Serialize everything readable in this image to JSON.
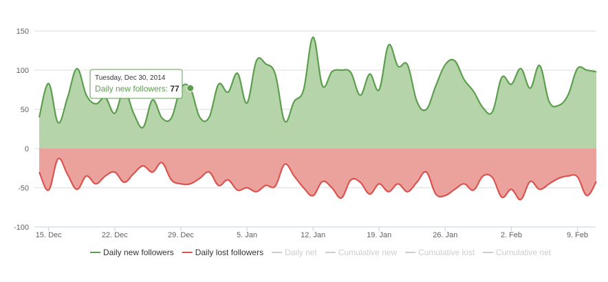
{
  "chart_data": {
    "type": "area",
    "title": "",
    "xlabel": "",
    "ylabel": "",
    "ylim": [
      -100,
      150
    ],
    "y_ticks": [
      -100,
      -50,
      0,
      50,
      100,
      150
    ],
    "grid": true,
    "x_start_day": 0,
    "x_end_day": 59,
    "x_ticks": [
      {
        "day": 1,
        "label": "15. Dec"
      },
      {
        "day": 8,
        "label": "22. Dec"
      },
      {
        "day": 15,
        "label": "29. Dec"
      },
      {
        "day": 22,
        "label": "5. Jan"
      },
      {
        "day": 29,
        "label": "12. Jan"
      },
      {
        "day": 36,
        "label": "19. Jan"
      },
      {
        "day": 43,
        "label": "26. Jan"
      },
      {
        "day": 50,
        "label": "2. Feb"
      },
      {
        "day": 57,
        "label": "9. Feb"
      }
    ],
    "series": [
      {
        "name": "Daily new followers",
        "color": "#5b9e4d",
        "fill": "#b5d4a9",
        "visible": true,
        "values": [
          40,
          83,
          33,
          65,
          102,
          68,
          57,
          65,
          45,
          75,
          45,
          27,
          62,
          39,
          39,
          77,
          77,
          40,
          40,
          82,
          72,
          96,
          58,
          112,
          108,
          95,
          35,
          60,
          75,
          142,
          80,
          98,
          100,
          97,
          68,
          95,
          75,
          132,
          105,
          107,
          60,
          50,
          80,
          107,
          112,
          88,
          73,
          52,
          47,
          91,
          82,
          102,
          77,
          106,
          60,
          55,
          68,
          102,
          100,
          98
        ]
      },
      {
        "name": "Daily lost followers",
        "color": "#d9534f",
        "fill": "#eba19c",
        "visible": true,
        "values": [
          -30,
          -53,
          -13,
          -33,
          -52,
          -35,
          -45,
          -35,
          -30,
          -43,
          -32,
          -22,
          -30,
          -18,
          -40,
          -45,
          -45,
          -38,
          -30,
          -47,
          -40,
          -53,
          -50,
          -55,
          -47,
          -48,
          -20,
          -35,
          -50,
          -60,
          -42,
          -50,
          -63,
          -40,
          -43,
          -58,
          -45,
          -55,
          -45,
          -55,
          -43,
          -30,
          -58,
          -60,
          -52,
          -45,
          -53,
          -35,
          -37,
          -62,
          -52,
          -65,
          -42,
          -52,
          -45,
          -38,
          -35,
          -36,
          -60,
          -42
        ]
      },
      {
        "name": "Daily net",
        "visible": false,
        "values": []
      },
      {
        "name": "Cumulative new",
        "visible": false,
        "values": []
      },
      {
        "name": "Cumulative lost",
        "visible": false,
        "values": []
      },
      {
        "name": "Cumulative net",
        "visible": false,
        "values": []
      }
    ],
    "legend_position": "bottom-center",
    "tooltip": {
      "date": "Tuesday, Dec 30, 2014",
      "series_label": "Daily new followers:",
      "value": "77",
      "point_day": 16,
      "point_value": 77
    }
  }
}
